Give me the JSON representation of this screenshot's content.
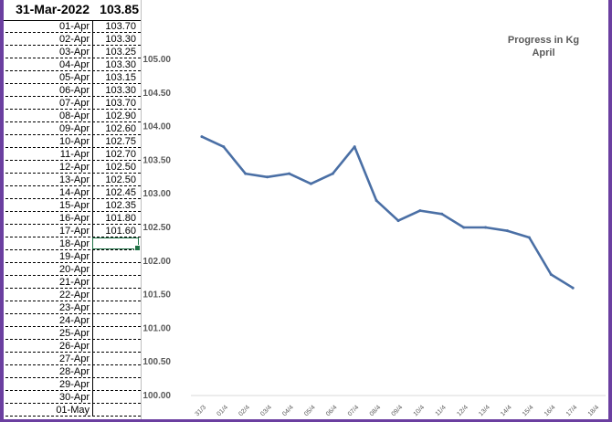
{
  "sheet": {
    "header": {
      "date": "31-Mar-2022",
      "value": "103.85"
    },
    "rows": [
      {
        "date": "01-Apr",
        "value": "103.70"
      },
      {
        "date": "02-Apr",
        "value": "103.30"
      },
      {
        "date": "03-Apr",
        "value": "103.25"
      },
      {
        "date": "04-Apr",
        "value": "103.30"
      },
      {
        "date": "05-Apr",
        "value": "103.15"
      },
      {
        "date": "06-Apr",
        "value": "103.30"
      },
      {
        "date": "07-Apr",
        "value": "103.70"
      },
      {
        "date": "08-Apr",
        "value": "102.90"
      },
      {
        "date": "09-Apr",
        "value": "102.60"
      },
      {
        "date": "10-Apr",
        "value": "102.75"
      },
      {
        "date": "11-Apr",
        "value": "102.70"
      },
      {
        "date": "12-Apr",
        "value": "102.50"
      },
      {
        "date": "13-Apr",
        "value": "102.50"
      },
      {
        "date": "14-Apr",
        "value": "102.45"
      },
      {
        "date": "15-Apr",
        "value": "102.35"
      },
      {
        "date": "16-Apr",
        "value": "101.80"
      },
      {
        "date": "17-Apr",
        "value": "101.60"
      },
      {
        "date": "18-Apr",
        "value": ""
      },
      {
        "date": "19-Apr",
        "value": ""
      },
      {
        "date": "20-Apr",
        "value": ""
      },
      {
        "date": "21-Apr",
        "value": ""
      },
      {
        "date": "22-Apr",
        "value": ""
      },
      {
        "date": "23-Apr",
        "value": ""
      },
      {
        "date": "24-Apr",
        "value": ""
      },
      {
        "date": "25-Apr",
        "value": ""
      },
      {
        "date": "26-Apr",
        "value": ""
      },
      {
        "date": "27-Apr",
        "value": ""
      },
      {
        "date": "28-Apr",
        "value": ""
      },
      {
        "date": "29-Apr",
        "value": ""
      },
      {
        "date": "30-Apr",
        "value": ""
      },
      {
        "date": "01-May",
        "value": ""
      }
    ]
  },
  "chart_data": {
    "type": "line",
    "title": "Progress in Kg",
    "subtitle": "April",
    "x": [
      "31/3",
      "01/4",
      "02/4",
      "03/4",
      "04/4",
      "05/4",
      "06/4",
      "07/4",
      "08/4",
      "09/4",
      "10/4",
      "11/4",
      "12/4",
      "13/4",
      "14/4",
      "15/4",
      "16/4",
      "17/4",
      "18/4"
    ],
    "series": [
      {
        "values": [
          103.85,
          103.7,
          103.3,
          103.25,
          103.3,
          103.15,
          103.3,
          103.7,
          102.9,
          102.6,
          102.75,
          102.7,
          102.5,
          102.5,
          102.45,
          102.35,
          101.8,
          101.6,
          null
        ],
        "color": "#4a6fa5"
      }
    ],
    "yticks": [
      "100.00",
      "100.50",
      "101.00",
      "101.50",
      "102.00",
      "102.50",
      "103.00",
      "103.50",
      "104.00",
      "104.50",
      "105.00"
    ],
    "ylim": [
      100,
      105
    ],
    "grid": false,
    "legend": "none"
  }
}
